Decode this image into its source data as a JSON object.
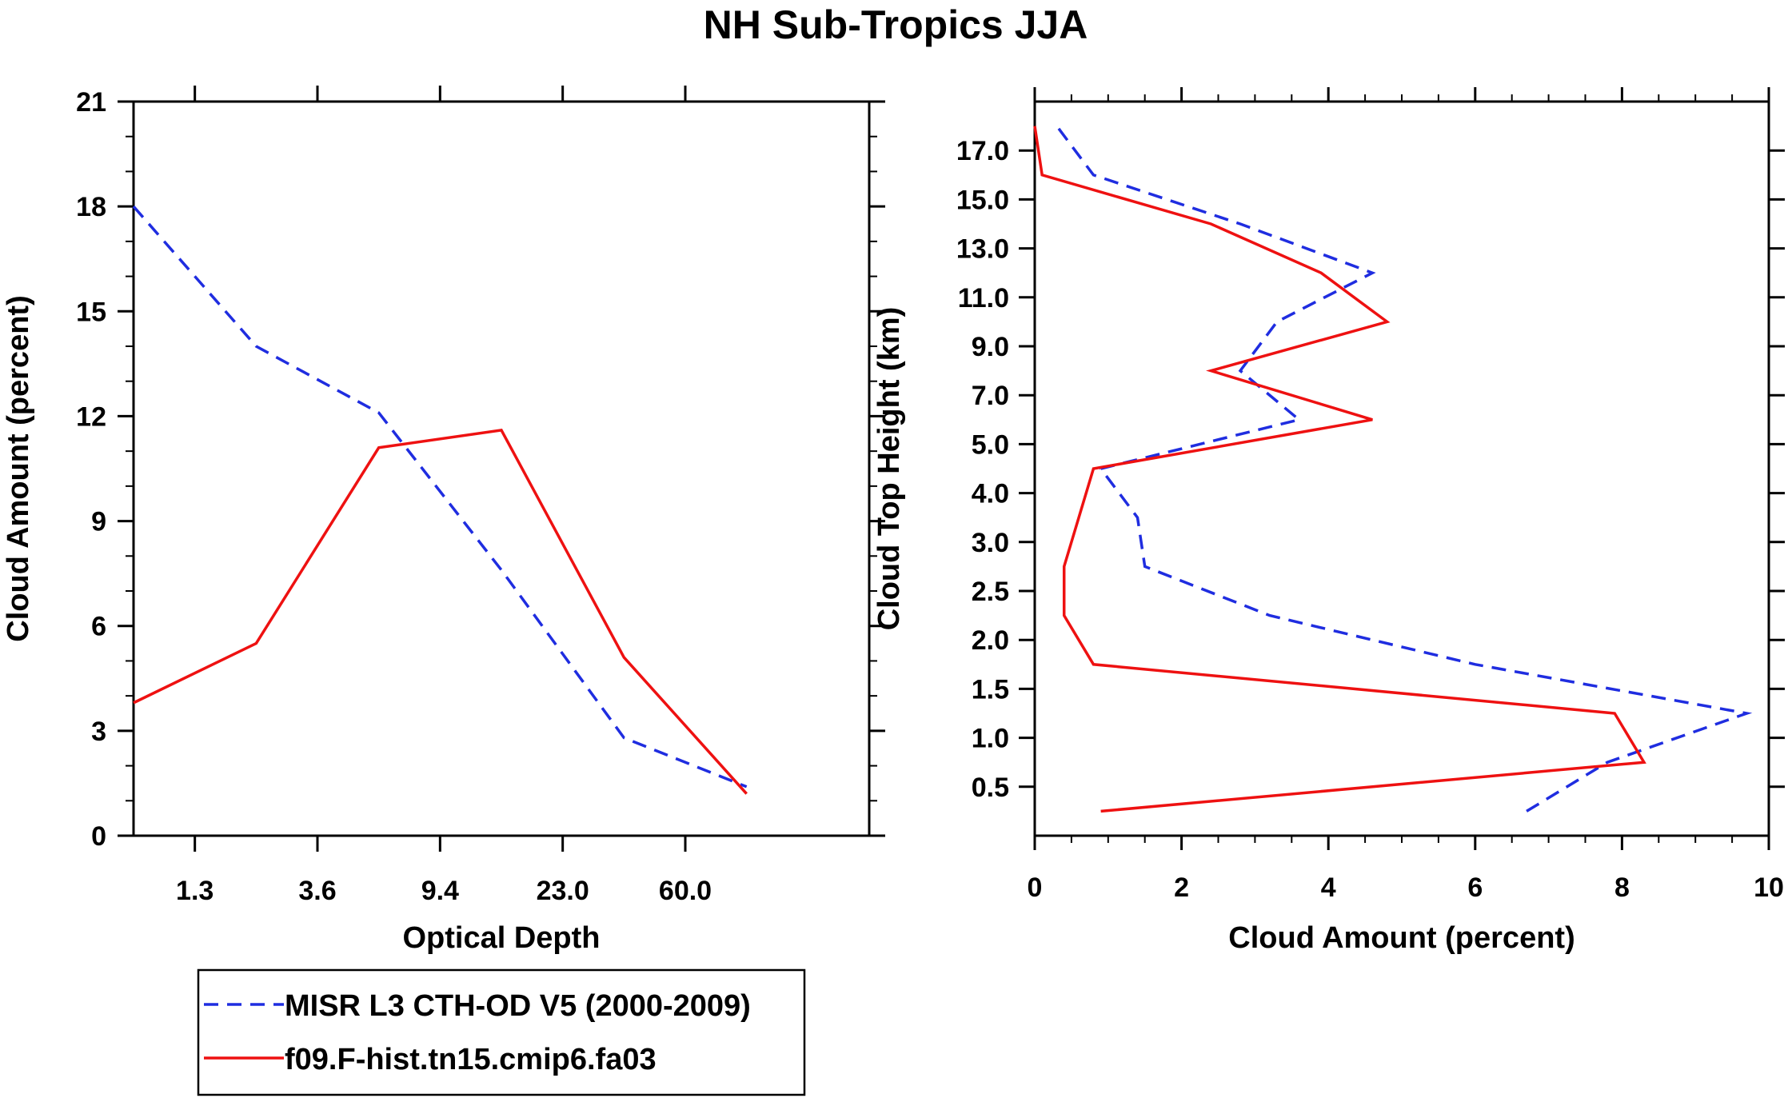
{
  "title": "NH Sub-Tropics JJA",
  "legend": [
    {
      "label": "MISR L3 CTH-OD V5 (2000-2009)",
      "color": "#1f2de0",
      "dash": true
    },
    {
      "label": "f09.F-hist.tn15.cmip6.fa03",
      "color": "#ee1111",
      "dash": false
    }
  ],
  "chart_data": [
    {
      "type": "line",
      "title": "",
      "xlabel": "Optical Depth",
      "ylabel": "Cloud Amount (percent)",
      "x_tick_labels": [
        "1.3",
        "3.6",
        "9.4",
        "23.0",
        "60.0"
      ],
      "y_tick_labels": [
        "0",
        "3",
        "6",
        "9",
        "12",
        "15",
        "18",
        "21"
      ],
      "ylim": [
        0,
        21
      ],
      "x_bins": [
        1,
        2,
        3,
        4,
        5,
        6,
        7
      ],
      "xlim": [
        1,
        7
      ],
      "series": [
        {
          "name": "MISR L3 CTH-OD V5 (2000-2009)",
          "values": [
            18.0,
            14.0,
            12.1,
            7.6,
            2.8,
            1.4
          ]
        },
        {
          "name": "f09.F-hist.tn15.cmip6.fa03",
          "values": [
            3.8,
            5.5,
            11.1,
            11.6,
            5.1,
            1.2
          ]
        }
      ]
    },
    {
      "type": "line",
      "title": "",
      "xlabel": "Cloud Amount (percent)",
      "ylabel": "Cloud Top Height (km)",
      "x_tick_labels": [
        "0",
        "2",
        "4",
        "6",
        "8",
        "10"
      ],
      "xlim": [
        0,
        10
      ],
      "y_tick_labels": [
        "0.5",
        "1.0",
        "1.5",
        "2.0",
        "2.5",
        "3.0",
        "4.0",
        "5.0",
        "7.0",
        "9.0",
        "11.0",
        "13.0",
        "15.0",
        "17.0"
      ],
      "y_levels": [
        0.25,
        0.75,
        1.25,
        1.75,
        2.25,
        2.75,
        3.5,
        4.5,
        6.0,
        8.0,
        10.0,
        12.0,
        14.0,
        16.0,
        17.5
      ],
      "series": [
        {
          "name": "MISR L3 CTH-OD V5 (2000-2009)",
          "values": [
            6.7,
            7.8,
            9.7,
            6.0,
            3.2,
            1.5,
            1.4,
            0.9,
            3.6,
            2.8,
            3.3,
            4.6,
            2.8,
            0.8,
            0.3
          ]
        },
        {
          "name": "f09.F-hist.tn15.cmip6.fa03",
          "values": [
            0.9,
            8.3,
            7.9,
            0.8,
            0.4,
            0.4,
            0.6,
            0.8,
            4.6,
            2.4,
            4.8,
            3.9,
            2.4,
            0.1,
            0.0
          ]
        }
      ]
    }
  ]
}
